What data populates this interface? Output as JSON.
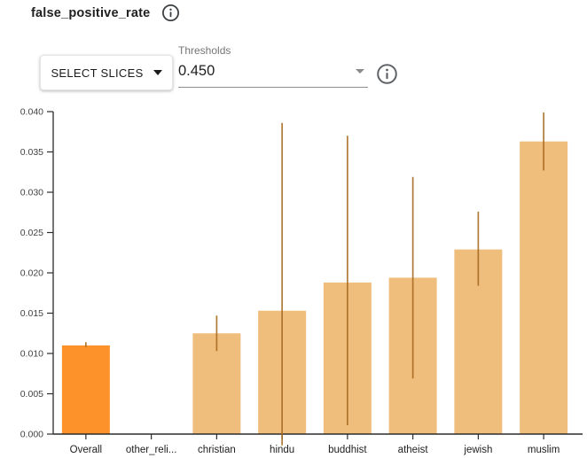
{
  "header": {
    "title": "false_positive_rate"
  },
  "controls": {
    "select_slices_label": "SELECT SLICES",
    "select_slices_caret_icon": "caret-down",
    "thresholds_label": "Thresholds",
    "thresholds_value": "0.450",
    "dropdown_caret_icon": "caret-down"
  },
  "colors": {
    "highlight_bar": "#FC9229",
    "slice_bar": "#EFBE7D",
    "error_line": "#A5691E",
    "axis": "#2b2b2b",
    "tick_label": "#424242",
    "category_label": "#212121",
    "icon_gray": "#5f6368",
    "underline_gray": "#8f8f8f"
  },
  "chart_data": {
    "type": "bar",
    "title": "false_positive_rate",
    "xlabel": "",
    "ylabel": "",
    "categories": [
      "Overall",
      "other_reli...",
      "christian",
      "hindu",
      "buddhist",
      "atheist",
      "jewish",
      "muslim"
    ],
    "values": [
      0.011,
      0.0,
      0.0125,
      0.0153,
      0.0188,
      0.0194,
      0.0229,
      0.0363
    ],
    "error_low": [
      0.0108,
      null,
      0.0103,
      -0.0014,
      0.0011,
      0.0069,
      0.0184,
      0.0327
    ],
    "error_high": [
      0.0114,
      null,
      0.0147,
      0.0386,
      0.037,
      0.0319,
      0.0276,
      0.0399
    ],
    "ylim": [
      0,
      0.04
    ],
    "ytick_labels": [
      "0.000",
      "0.005",
      "0.010",
      "0.015",
      "0.020",
      "0.025",
      "0.030",
      "0.035",
      "0.040"
    ],
    "grid": false,
    "legend": false,
    "highlight_index": 0,
    "bar_color": "#EFBE7D",
    "highlight_color": "#FC9229",
    "error_color": "#A5691E"
  }
}
